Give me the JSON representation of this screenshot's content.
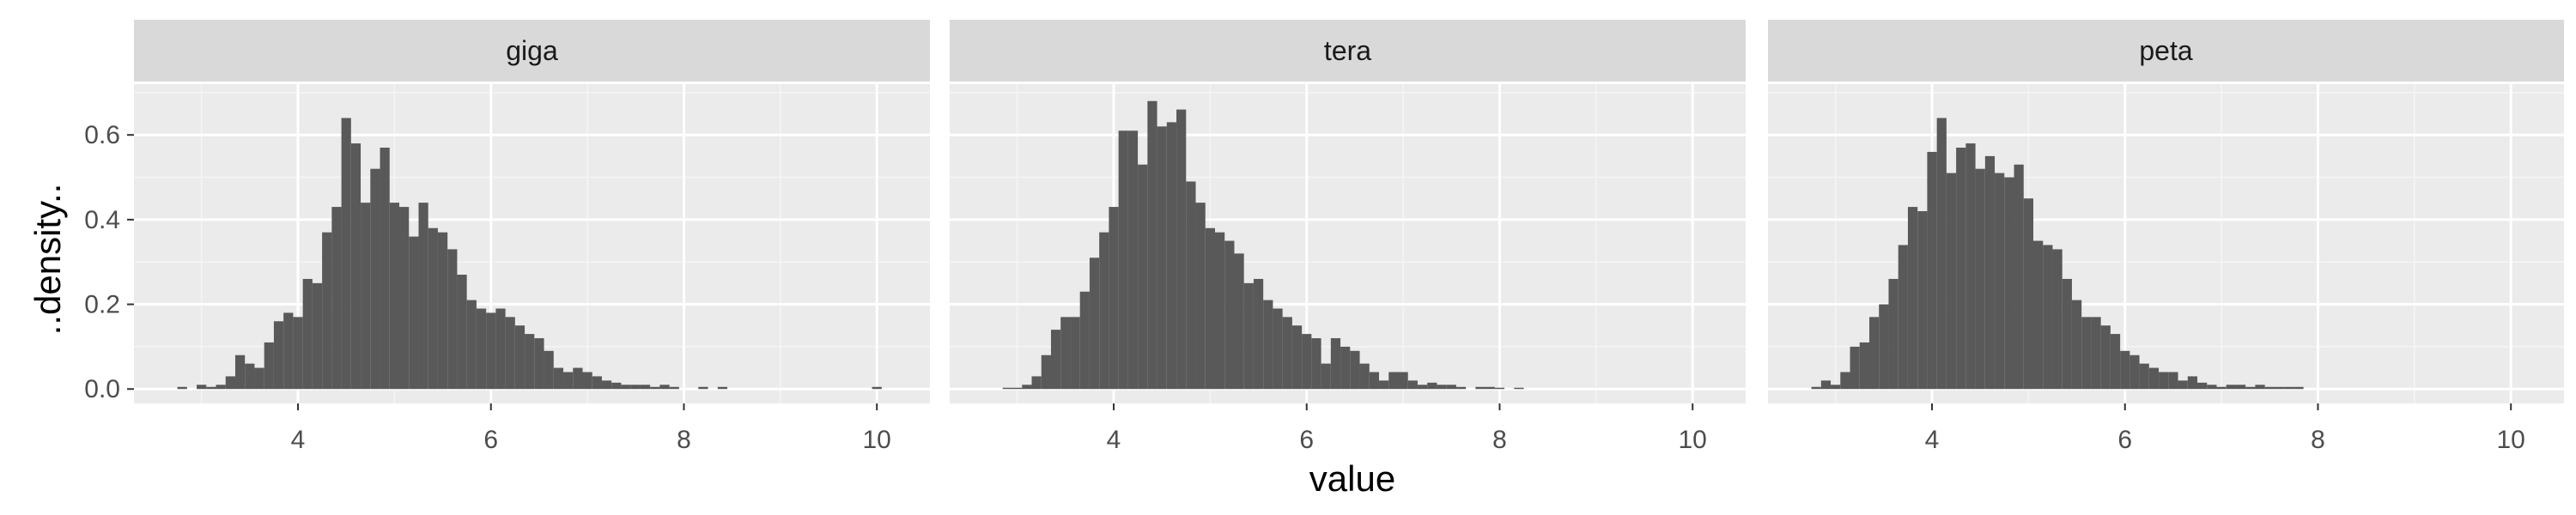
{
  "chart_data": {
    "type": "histogram",
    "xlabel": "value",
    "ylabel": "..density..",
    "xlim": [
      2.3,
      10.55
    ],
    "ylim": [
      -0.034,
      0.72
    ],
    "x_ticks": [
      4,
      6,
      8,
      10
    ],
    "y_ticks": [
      0.0,
      0.2,
      0.4,
      0.6
    ],
    "y_tick_labels": [
      "0.0",
      "0.2",
      "0.4",
      "0.6"
    ],
    "bin_width": 0.1,
    "grid": true,
    "panel_background": "#ebebeb",
    "strip_background": "#d9d9d9",
    "bar_color": "#595959",
    "panels": [
      {
        "label": "giga",
        "bins": [
          [
            2.8,
            0.005
          ],
          [
            2.9,
            0.0
          ],
          [
            3.0,
            0.01
          ],
          [
            3.1,
            0.005
          ],
          [
            3.2,
            0.01
          ],
          [
            3.3,
            0.03
          ],
          [
            3.4,
            0.08
          ],
          [
            3.5,
            0.06
          ],
          [
            3.6,
            0.05
          ],
          [
            3.7,
            0.11
          ],
          [
            3.8,
            0.16
          ],
          [
            3.9,
            0.18
          ],
          [
            4.0,
            0.17
          ],
          [
            4.1,
            0.26
          ],
          [
            4.2,
            0.25
          ],
          [
            4.3,
            0.37
          ],
          [
            4.4,
            0.43
          ],
          [
            4.5,
            0.64
          ],
          [
            4.6,
            0.58
          ],
          [
            4.7,
            0.44
          ],
          [
            4.8,
            0.52
          ],
          [
            4.9,
            0.57
          ],
          [
            5.0,
            0.44
          ],
          [
            5.1,
            0.43
          ],
          [
            5.2,
            0.36
          ],
          [
            5.3,
            0.44
          ],
          [
            5.4,
            0.38
          ],
          [
            5.5,
            0.37
          ],
          [
            5.6,
            0.33
          ],
          [
            5.7,
            0.27
          ],
          [
            5.8,
            0.21
          ],
          [
            5.9,
            0.19
          ],
          [
            6.0,
            0.18
          ],
          [
            6.1,
            0.19
          ],
          [
            6.2,
            0.17
          ],
          [
            6.3,
            0.15
          ],
          [
            6.4,
            0.13
          ],
          [
            6.5,
            0.12
          ],
          [
            6.6,
            0.09
          ],
          [
            6.7,
            0.05
          ],
          [
            6.8,
            0.04
          ],
          [
            6.9,
            0.05
          ],
          [
            7.0,
            0.04
          ],
          [
            7.1,
            0.03
          ],
          [
            7.2,
            0.02
          ],
          [
            7.3,
            0.015
          ],
          [
            7.4,
            0.01
          ],
          [
            7.5,
            0.01
          ],
          [
            7.6,
            0.01
          ],
          [
            7.7,
            0.005
          ],
          [
            7.8,
            0.01
          ],
          [
            7.9,
            0.005
          ],
          [
            8.2,
            0.005
          ],
          [
            8.4,
            0.005
          ],
          [
            10.0,
            0.005
          ]
        ]
      },
      {
        "label": "tera",
        "bins": [
          [
            2.9,
            0.003
          ],
          [
            3.0,
            0.003
          ],
          [
            3.1,
            0.01
          ],
          [
            3.2,
            0.03
          ],
          [
            3.3,
            0.08
          ],
          [
            3.4,
            0.14
          ],
          [
            3.5,
            0.17
          ],
          [
            3.6,
            0.17
          ],
          [
            3.7,
            0.23
          ],
          [
            3.8,
            0.31
          ],
          [
            3.9,
            0.37
          ],
          [
            4.0,
            0.43
          ],
          [
            4.1,
            0.61
          ],
          [
            4.2,
            0.61
          ],
          [
            4.3,
            0.53
          ],
          [
            4.4,
            0.68
          ],
          [
            4.5,
            0.62
          ],
          [
            4.6,
            0.63
          ],
          [
            4.7,
            0.66
          ],
          [
            4.8,
            0.49
          ],
          [
            4.9,
            0.44
          ],
          [
            5.0,
            0.38
          ],
          [
            5.1,
            0.37
          ],
          [
            5.2,
            0.35
          ],
          [
            5.3,
            0.32
          ],
          [
            5.4,
            0.25
          ],
          [
            5.5,
            0.26
          ],
          [
            5.6,
            0.21
          ],
          [
            5.7,
            0.19
          ],
          [
            5.8,
            0.17
          ],
          [
            5.9,
            0.15
          ],
          [
            6.0,
            0.13
          ],
          [
            6.1,
            0.12
          ],
          [
            6.2,
            0.06
          ],
          [
            6.3,
            0.12
          ],
          [
            6.4,
            0.1
          ],
          [
            6.5,
            0.09
          ],
          [
            6.6,
            0.06
          ],
          [
            6.7,
            0.04
          ],
          [
            6.8,
            0.02
          ],
          [
            6.9,
            0.04
          ],
          [
            7.0,
            0.04
          ],
          [
            7.1,
            0.02
          ],
          [
            7.2,
            0.01
          ],
          [
            7.3,
            0.015
          ],
          [
            7.4,
            0.01
          ],
          [
            7.5,
            0.01
          ],
          [
            7.6,
            0.005
          ],
          [
            7.8,
            0.005
          ],
          [
            7.9,
            0.005
          ],
          [
            8.0,
            0.003
          ],
          [
            8.2,
            0.003
          ]
        ]
      },
      {
        "label": "peta",
        "bins": [
          [
            2.8,
            0.005
          ],
          [
            2.9,
            0.02
          ],
          [
            3.0,
            0.01
          ],
          [
            3.1,
            0.04
          ],
          [
            3.2,
            0.1
          ],
          [
            3.3,
            0.11
          ],
          [
            3.4,
            0.17
          ],
          [
            3.5,
            0.2
          ],
          [
            3.6,
            0.26
          ],
          [
            3.7,
            0.34
          ],
          [
            3.8,
            0.43
          ],
          [
            3.9,
            0.42
          ],
          [
            4.0,
            0.56
          ],
          [
            4.1,
            0.64
          ],
          [
            4.2,
            0.51
          ],
          [
            4.3,
            0.57
          ],
          [
            4.4,
            0.58
          ],
          [
            4.5,
            0.52
          ],
          [
            4.6,
            0.55
          ],
          [
            4.7,
            0.51
          ],
          [
            4.8,
            0.5
          ],
          [
            4.9,
            0.53
          ],
          [
            5.0,
            0.45
          ],
          [
            5.1,
            0.35
          ],
          [
            5.2,
            0.34
          ],
          [
            5.3,
            0.33
          ],
          [
            5.4,
            0.26
          ],
          [
            5.5,
            0.21
          ],
          [
            5.6,
            0.17
          ],
          [
            5.7,
            0.17
          ],
          [
            5.8,
            0.15
          ],
          [
            5.9,
            0.13
          ],
          [
            6.0,
            0.09
          ],
          [
            6.1,
            0.08
          ],
          [
            6.2,
            0.06
          ],
          [
            6.3,
            0.05
          ],
          [
            6.4,
            0.04
          ],
          [
            6.5,
            0.04
          ],
          [
            6.6,
            0.02
          ],
          [
            6.7,
            0.03
          ],
          [
            6.8,
            0.015
          ],
          [
            6.9,
            0.01
          ],
          [
            7.0,
            0.005
          ],
          [
            7.1,
            0.01
          ],
          [
            7.2,
            0.01
          ],
          [
            7.3,
            0.005
          ],
          [
            7.4,
            0.01
          ],
          [
            7.5,
            0.005
          ],
          [
            7.6,
            0.005
          ],
          [
            7.7,
            0.005
          ],
          [
            7.8,
            0.005
          ]
        ]
      }
    ]
  }
}
